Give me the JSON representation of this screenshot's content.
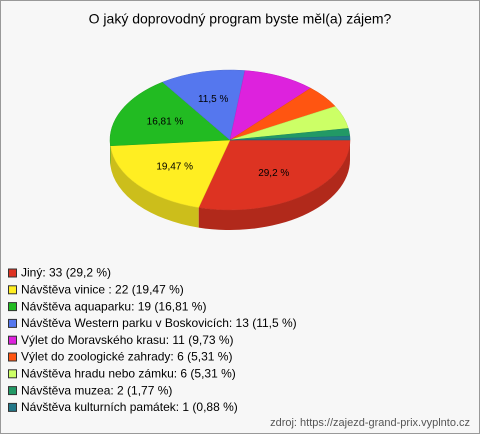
{
  "chart_data": {
    "type": "pie",
    "title": "O jaký doprovodný program byste měl(a) zájem?",
    "categories": [
      "Jiný: 33 (29,2 %)",
      "Návštěva vinice : 22 (19,47 %)",
      "Návštěva aquaparku: 19 (16,81 %)",
      "Návštěva Western parku v Boskovicích: 13 (11,5 %)",
      "Výlet do Moravského krasu: 11 (9,73 %)",
      "Výlet do zoologické zahrady: 6 (5,31 %)",
      "Návštěva hradu nebo zámku: 6 (5,31 %)",
      "Návštěva muzea: 2 (1,77 %)",
      "Návštěva kulturních památek: 1 (0,88 %)"
    ],
    "values": [
      29.2,
      19.47,
      16.81,
      11.5,
      9.73,
      5.31,
      5.31,
      1.77,
      0.88
    ],
    "value_labels": [
      "29,2 %",
      "19,47 %",
      "16,81 %",
      "11,5 %",
      null,
      null,
      null,
      null,
      null
    ],
    "colors": [
      "#dd3322",
      "#ffee22",
      "#22bb22",
      "#5577ee",
      "#dd22dd",
      "#ff5511",
      "#ccff66",
      "#229966",
      "#227788"
    ],
    "source": "zdroj: https://zajezd-grand-prix.vyplnto.cz"
  }
}
